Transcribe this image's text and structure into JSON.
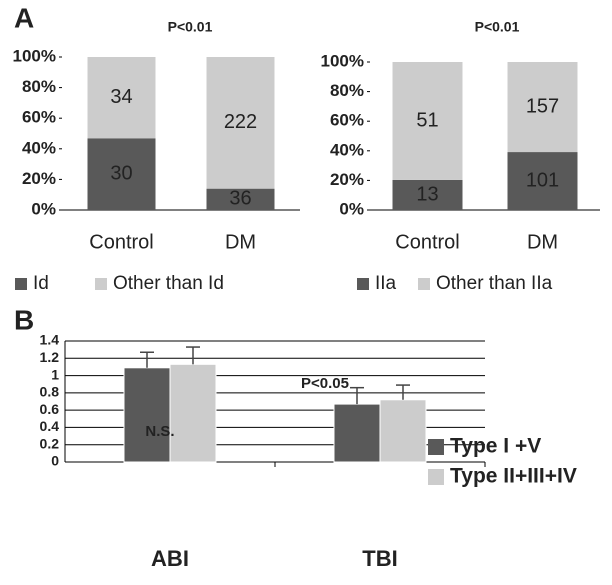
{
  "chart_data": [
    {
      "type": "stacked100",
      "panel_label": "A",
      "title": "P<0.01",
      "categories": [
        "Control",
        "DM"
      ],
      "series": [
        {
          "name": "Id",
          "color": "#595959",
          "values": [
            30,
            36
          ]
        },
        {
          "name": "Other than Id",
          "color": "#cccccc",
          "values": [
            34,
            222
          ]
        }
      ],
      "ylim": [
        0,
        100
      ],
      "yticks": [
        {
          "value": 0,
          "label": "0%"
        },
        {
          "value": 20,
          "label": "20%"
        },
        {
          "value": 40,
          "label": "40%"
        },
        {
          "value": 60,
          "label": "60%"
        },
        {
          "value": 80,
          "label": "80%"
        },
        {
          "value": 100,
          "label": "100%"
        }
      ],
      "legend": "bottom"
    },
    {
      "type": "stacked100",
      "title": "P<0.01",
      "categories": [
        "Control",
        "DM"
      ],
      "series": [
        {
          "name": "IIa",
          "color": "#595959",
          "values": [
            13,
            101
          ]
        },
        {
          "name": "Other than IIa",
          "color": "#cccccc",
          "values": [
            51,
            157
          ]
        }
      ],
      "ylim": [
        0,
        100
      ],
      "yticks": [
        {
          "value": 0,
          "label": "0%"
        },
        {
          "value": 20,
          "label": "20%"
        },
        {
          "value": 40,
          "label": "40%"
        },
        {
          "value": 60,
          "label": "60%"
        },
        {
          "value": 80,
          "label": "80%"
        },
        {
          "value": 100,
          "label": "100%"
        }
      ],
      "legend": "bottom"
    },
    {
      "type": "errorbar",
      "panel_label": "B",
      "categories": [
        "ABI",
        "TBI"
      ],
      "series": [
        {
          "name": "Type I +V",
          "color": "#595959",
          "values": [
            1.09,
            0.67
          ],
          "errors": [
            0.18,
            0.19
          ]
        },
        {
          "name": "Type II+III+IV",
          "color": "#cccccc",
          "values": [
            1.13,
            0.72
          ],
          "errors": [
            0.2,
            0.17
          ]
        }
      ],
      "annotations": [
        "N.S.",
        "P<0.05"
      ],
      "ylim": [
        0,
        1.4
      ],
      "yticks": [
        0,
        0.2,
        0.4,
        0.6,
        0.8,
        1,
        1.2,
        1.4
      ],
      "grid": true,
      "legend": "right"
    }
  ]
}
